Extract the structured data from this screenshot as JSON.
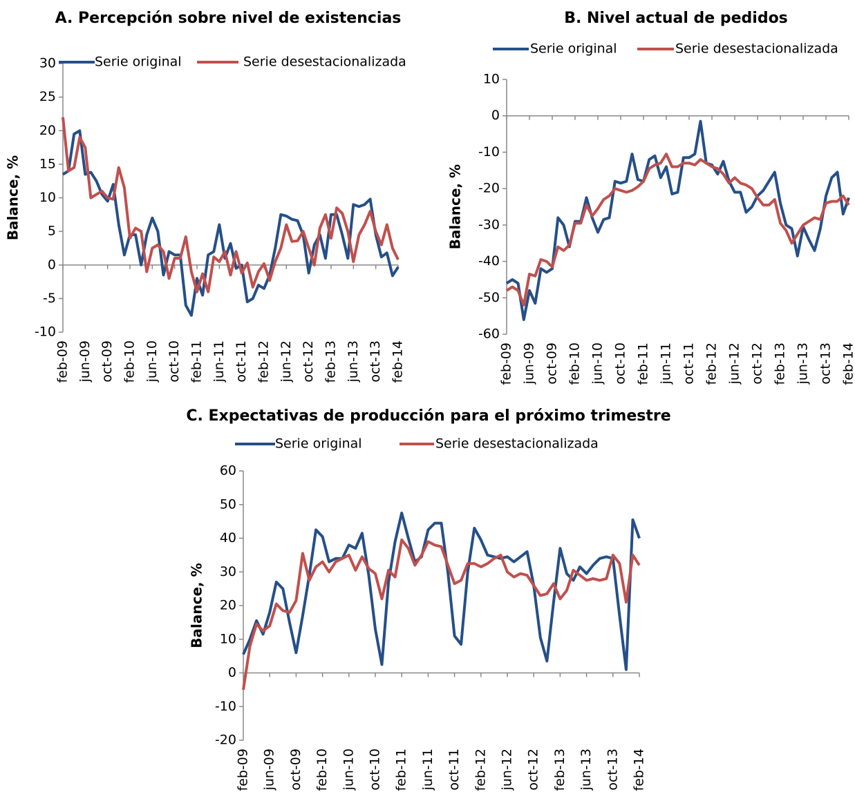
{
  "chart_data": [
    {
      "type": "line",
      "title": "A.   Percepción sobre nivel de existencias",
      "y_label": "Balance, %",
      "categories": [
        "feb-09",
        null,
        null,
        null,
        "jun-09",
        null,
        null,
        null,
        "oct-09",
        null,
        null,
        null,
        "feb-10",
        null,
        null,
        null,
        "jun-10",
        null,
        null,
        null,
        "oct-10",
        null,
        null,
        null,
        "feb-11",
        null,
        null,
        null,
        "jun-11",
        null,
        null,
        null,
        "oct-11",
        null,
        null,
        null,
        "feb-12",
        null,
        null,
        null,
        "jun-12",
        null,
        null,
        null,
        "oct-12",
        null,
        null,
        null,
        "feb-13",
        null,
        null,
        null,
        "jun-13",
        null,
        null,
        null,
        "oct-13",
        null,
        null,
        null,
        "feb-14"
      ],
      "series": [
        {
          "name": "Serie original",
          "color": "#254f88",
          "values": [
            13.5,
            14,
            19.5,
            20,
            13.5,
            13.8,
            12.5,
            10.5,
            9.5,
            12,
            6,
            1.5,
            4.5,
            4.5,
            0,
            4.5,
            7,
            5,
            -1.5,
            2,
            1.5,
            1.5,
            -6,
            -7.5,
            -2,
            -4.5,
            1.5,
            2,
            6,
            1,
            3.2,
            -0.5,
            0,
            -5.5,
            -5,
            -3,
            -3.5,
            -1.5,
            2.5,
            7.5,
            7.3,
            6.8,
            6.6,
            4.5,
            -1.2,
            3,
            4.5,
            1,
            7.5,
            7.5,
            4.5,
            1,
            9,
            8.7,
            9,
            9.8,
            4.5,
            1.2,
            1.8,
            -1.6,
            -0.3
          ]
        },
        {
          "name": "Serie desestacionalizada",
          "color": "#c0504d",
          "values": [
            22,
            14,
            14.5,
            19,
            17.5,
            10,
            10.5,
            11,
            10,
            9.8,
            14.5,
            11.5,
            4,
            5.5,
            5,
            -1,
            2.5,
            3,
            2,
            -2,
            1,
            1,
            4.2,
            -1,
            -4,
            -1.3,
            -4,
            1.2,
            0.5,
            2,
            -1.5,
            2,
            -1.2,
            0.3,
            -3.3,
            -1,
            0.2,
            -2.3,
            0.5,
            2.5,
            6,
            3.5,
            3.6,
            5,
            2.5,
            0,
            5.5,
            7.5,
            4,
            8.5,
            7.7,
            5,
            0.5,
            4.5,
            6,
            8,
            5,
            3,
            6,
            2.5,
            0.8
          ]
        }
      ],
      "ylim": [
        -10,
        30
      ],
      "yticks": [
        -10,
        -5,
        0,
        5,
        10,
        15,
        20,
        25,
        30
      ],
      "grid": false,
      "legend": "top"
    },
    {
      "type": "line",
      "title": "B.   Nivel actual de pedidos",
      "y_label": "Balance, %",
      "categories": [
        "feb-09",
        null,
        null,
        null,
        "jun-09",
        null,
        null,
        null,
        "oct-09",
        null,
        null,
        null,
        "feb-10",
        null,
        null,
        null,
        "jun-10",
        null,
        null,
        null,
        "oct-10",
        null,
        null,
        null,
        "feb-11",
        null,
        null,
        null,
        "jun-11",
        null,
        null,
        null,
        "oct-11",
        null,
        null,
        null,
        "feb-12",
        null,
        null,
        null,
        "jun-12",
        null,
        null,
        null,
        "oct-12",
        null,
        null,
        null,
        "feb-13",
        null,
        null,
        null,
        "jun-13",
        null,
        null,
        null,
        "oct-13",
        null,
        null,
        null,
        "feb-14"
      ],
      "series": [
        {
          "name": "Serie original",
          "color": "#254f88",
          "values": [
            -46,
            -45,
            -46,
            -56,
            -48,
            -51.5,
            -42,
            -43,
            -42,
            -28,
            -30,
            -36,
            -29,
            -29,
            -22.5,
            -28,
            -32,
            -28.5,
            -28,
            -18,
            -18.5,
            -18,
            -10.5,
            -17.5,
            -18,
            -12,
            -11,
            -17,
            -14,
            -21.5,
            -21,
            -11.5,
            -11.5,
            -10.5,
            -1.5,
            -13,
            -13.5,
            -16,
            -12.5,
            -18,
            -21,
            -21,
            -26.5,
            -25,
            -22,
            -20.5,
            -18,
            -15.5,
            -24,
            -30,
            -31,
            -38.5,
            -30.5,
            -34,
            -37,
            -31,
            -22,
            -17,
            -15.5,
            -27,
            -22.5
          ]
        },
        {
          "name": "Serie desestacionalizada",
          "color": "#c0504d",
          "values": [
            -48,
            -47,
            -48,
            -52,
            -43.5,
            -44,
            -39.5,
            -40,
            -41.5,
            -36,
            -37,
            -35.5,
            -29.5,
            -29.5,
            -24.5,
            -27.5,
            -25.5,
            -23,
            -22,
            -20,
            -20.5,
            -21,
            -20.5,
            -19.5,
            -18,
            -14.5,
            -13.5,
            -13,
            -10.5,
            -14,
            -14,
            -13,
            -13,
            -13.5,
            -12,
            -13,
            -14,
            -14.5,
            -16,
            -18.5,
            -17,
            -18.5,
            -19,
            -20,
            -22.5,
            -24.5,
            -24.5,
            -23,
            -29.5,
            -31.5,
            -35,
            -32.5,
            -30,
            -29,
            -28,
            -28.5,
            -24,
            -23.5,
            -23.5,
            -22,
            -24.5
          ]
        }
      ],
      "ylim": [
        -60,
        10
      ],
      "yticks": [
        -60,
        -50,
        -40,
        -30,
        -20,
        -10,
        0,
        10
      ],
      "grid": false,
      "legend": "top"
    },
    {
      "type": "line",
      "title": "C.   Expectativas de producción para el próximo trimestre",
      "y_label": "Balance, %",
      "categories": [
        "feb-09",
        null,
        null,
        null,
        "jun-09",
        null,
        null,
        null,
        "oct-09",
        null,
        null,
        null,
        "feb-10",
        null,
        null,
        null,
        "jun-10",
        null,
        null,
        null,
        "oct-10",
        null,
        null,
        null,
        "feb-11",
        null,
        null,
        null,
        "jun-11",
        null,
        null,
        null,
        "oct-11",
        null,
        null,
        null,
        "feb-12",
        null,
        null,
        null,
        "jun-12",
        null,
        null,
        null,
        "oct-12",
        null,
        null,
        null,
        "feb-13",
        null,
        null,
        null,
        "jun-13",
        null,
        null,
        null,
        "oct-13",
        null,
        null,
        null,
        "feb-14"
      ],
      "series": [
        {
          "name": "Serie original",
          "color": "#254f88",
          "values": [
            5.5,
            10,
            15.5,
            11.5,
            18,
            27,
            25,
            15,
            6,
            17,
            29,
            42.5,
            40.5,
            33,
            34,
            34,
            38,
            37,
            41.5,
            29,
            13,
            2.5,
            27,
            39,
            47.5,
            40,
            33,
            34.5,
            42.5,
            44.5,
            44.5,
            30,
            11,
            8.5,
            30,
            43,
            39.5,
            35,
            34.5,
            34,
            34.5,
            33,
            34.5,
            36,
            26,
            10.5,
            3.5,
            21,
            37,
            29.5,
            27.5,
            31.5,
            29.5,
            32,
            34,
            34.5,
            34,
            17,
            1,
            45.5,
            40
          ]
        },
        {
          "name": "Serie desestacionalizada",
          "color": "#c0504d",
          "values": [
            -5,
            8,
            14.5,
            12.5,
            14,
            20.5,
            18.5,
            18,
            21.5,
            35.5,
            27.5,
            31.5,
            33,
            30,
            33,
            34,
            35,
            30.5,
            34.5,
            31,
            29.5,
            22,
            30.5,
            28.5,
            39.5,
            37,
            32,
            35,
            39,
            38,
            37.5,
            32,
            26.5,
            27.5,
            32.5,
            32.5,
            31.5,
            32.5,
            34,
            35,
            30,
            28.5,
            29.5,
            29,
            26,
            23,
            23.5,
            26.5,
            22,
            24.5,
            30.5,
            29,
            27.5,
            28,
            27.5,
            28,
            35,
            32.5,
            21,
            35,
            32
          ]
        }
      ],
      "ylim": [
        -20,
        60
      ],
      "yticks": [
        -20,
        -10,
        0,
        10,
        20,
        30,
        40,
        50,
        60
      ],
      "grid": false,
      "legend": "top"
    }
  ]
}
